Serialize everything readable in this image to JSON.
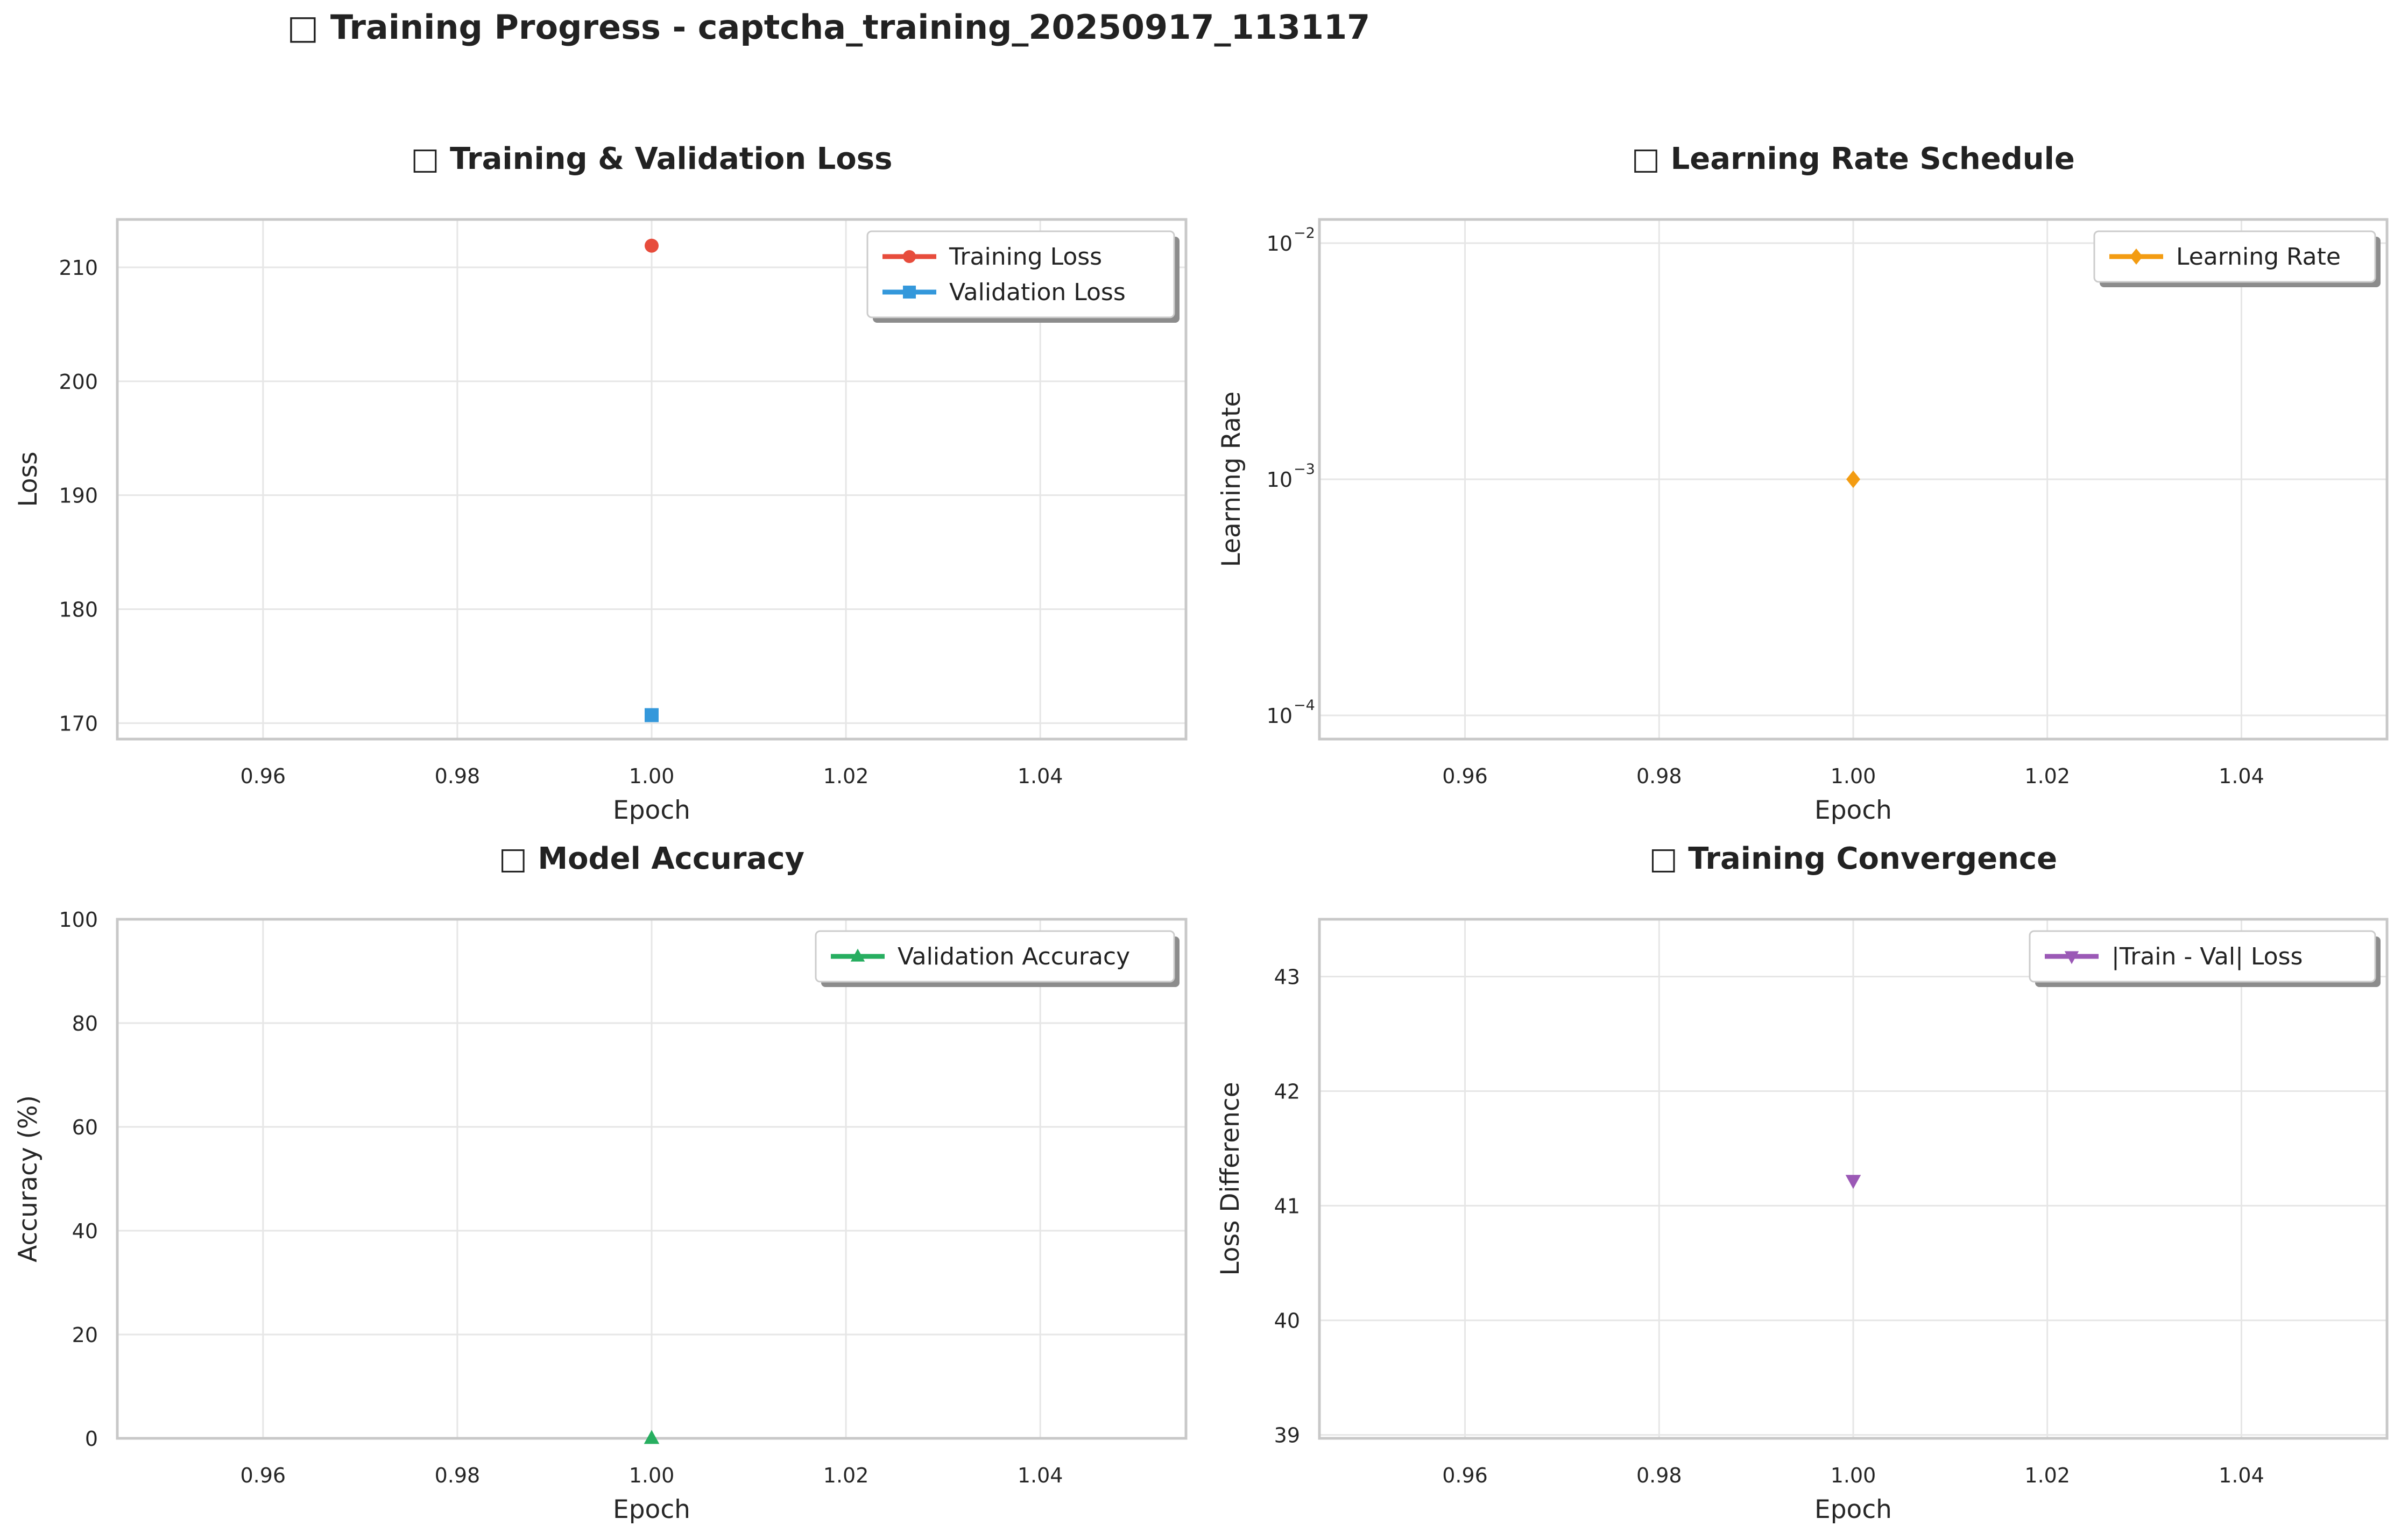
{
  "title": "□ Training Progress - captcha_training_20250917_113117",
  "chart_data": [
    {
      "id": "loss",
      "type": "line",
      "title": "□ Training & Validation Loss",
      "xlabel": "Epoch",
      "ylabel": "Loss",
      "yscale": "linear",
      "xlim": [
        0.945,
        1.055
      ],
      "ylim": [
        168.6,
        214.2
      ],
      "xticks": [
        "0.96",
        "0.98",
        "1.00",
        "1.02",
        "1.04"
      ],
      "xtick_values": [
        0.96,
        0.98,
        1.0,
        1.02,
        1.04
      ],
      "yticks": [
        "170",
        "180",
        "190",
        "200",
        "210"
      ],
      "ytick_values": [
        170,
        180,
        190,
        200,
        210
      ],
      "grid": true,
      "legend": "top-right",
      "series": [
        {
          "name": "Training Loss",
          "color": "#e74c3c",
          "marker": "circle",
          "x": [
            1.0
          ],
          "y": [
            211.9
          ]
        },
        {
          "name": "Validation Loss",
          "color": "#3498db",
          "marker": "square",
          "x": [
            1.0
          ],
          "y": [
            170.7
          ]
        }
      ]
    },
    {
      "id": "lr",
      "type": "line",
      "title": "□ Learning Rate Schedule",
      "xlabel": "Epoch",
      "ylabel": "Learning Rate",
      "yscale": "log",
      "xlim": [
        0.945,
        1.055
      ],
      "ylim": [
        7.94e-05,
        0.0126
      ],
      "xticks": [
        "0.96",
        "0.98",
        "1.00",
        "1.02",
        "1.04"
      ],
      "xtick_values": [
        0.96,
        0.98,
        1.0,
        1.02,
        1.04
      ],
      "yticks": [
        "10",
        "10",
        "10"
      ],
      "ytick_exponents": [
        "−4",
        "−3",
        "−2"
      ],
      "ytick_values": [
        0.0001,
        0.001,
        0.01
      ],
      "grid": true,
      "legend": "top-right",
      "series": [
        {
          "name": "Learning Rate",
          "color": "#f39c12",
          "marker": "diamond",
          "x": [
            1.0
          ],
          "y": [
            0.001
          ]
        }
      ]
    },
    {
      "id": "acc",
      "type": "line",
      "title": "□ Model Accuracy",
      "xlabel": "Epoch",
      "ylabel": "Accuracy (%)",
      "yscale": "linear",
      "xlim": [
        0.945,
        1.055
      ],
      "ylim": [
        0,
        100
      ],
      "xticks": [
        "0.96",
        "0.98",
        "1.00",
        "1.02",
        "1.04"
      ],
      "xtick_values": [
        0.96,
        0.98,
        1.0,
        1.02,
        1.04
      ],
      "yticks": [
        "0",
        "20",
        "40",
        "60",
        "80",
        "100"
      ],
      "ytick_values": [
        0,
        20,
        40,
        60,
        80,
        100
      ],
      "grid": true,
      "legend": "top-right",
      "series": [
        {
          "name": "Validation Accuracy",
          "color": "#27ae60",
          "marker": "triangle-up",
          "x": [
            1.0
          ],
          "y": [
            0.0
          ]
        }
      ]
    },
    {
      "id": "conv",
      "type": "line",
      "title": "□ Training Convergence",
      "xlabel": "Epoch",
      "ylabel": "Loss Difference",
      "yscale": "linear",
      "xlim": [
        0.945,
        1.055
      ],
      "ylim": [
        38.97,
        43.5
      ],
      "xticks": [
        "0.96",
        "0.98",
        "1.00",
        "1.02",
        "1.04"
      ],
      "xtick_values": [
        0.96,
        0.98,
        1.0,
        1.02,
        1.04
      ],
      "yticks": [
        "39",
        "40",
        "41",
        "42",
        "43"
      ],
      "ytick_values": [
        39,
        40,
        41,
        42,
        43
      ],
      "grid": true,
      "legend": "top-right",
      "series": [
        {
          "name": "|Train - Val| Loss",
          "color": "#9b59b6",
          "marker": "triangle-down",
          "x": [
            1.0
          ],
          "y": [
            41.22
          ]
        }
      ]
    }
  ]
}
